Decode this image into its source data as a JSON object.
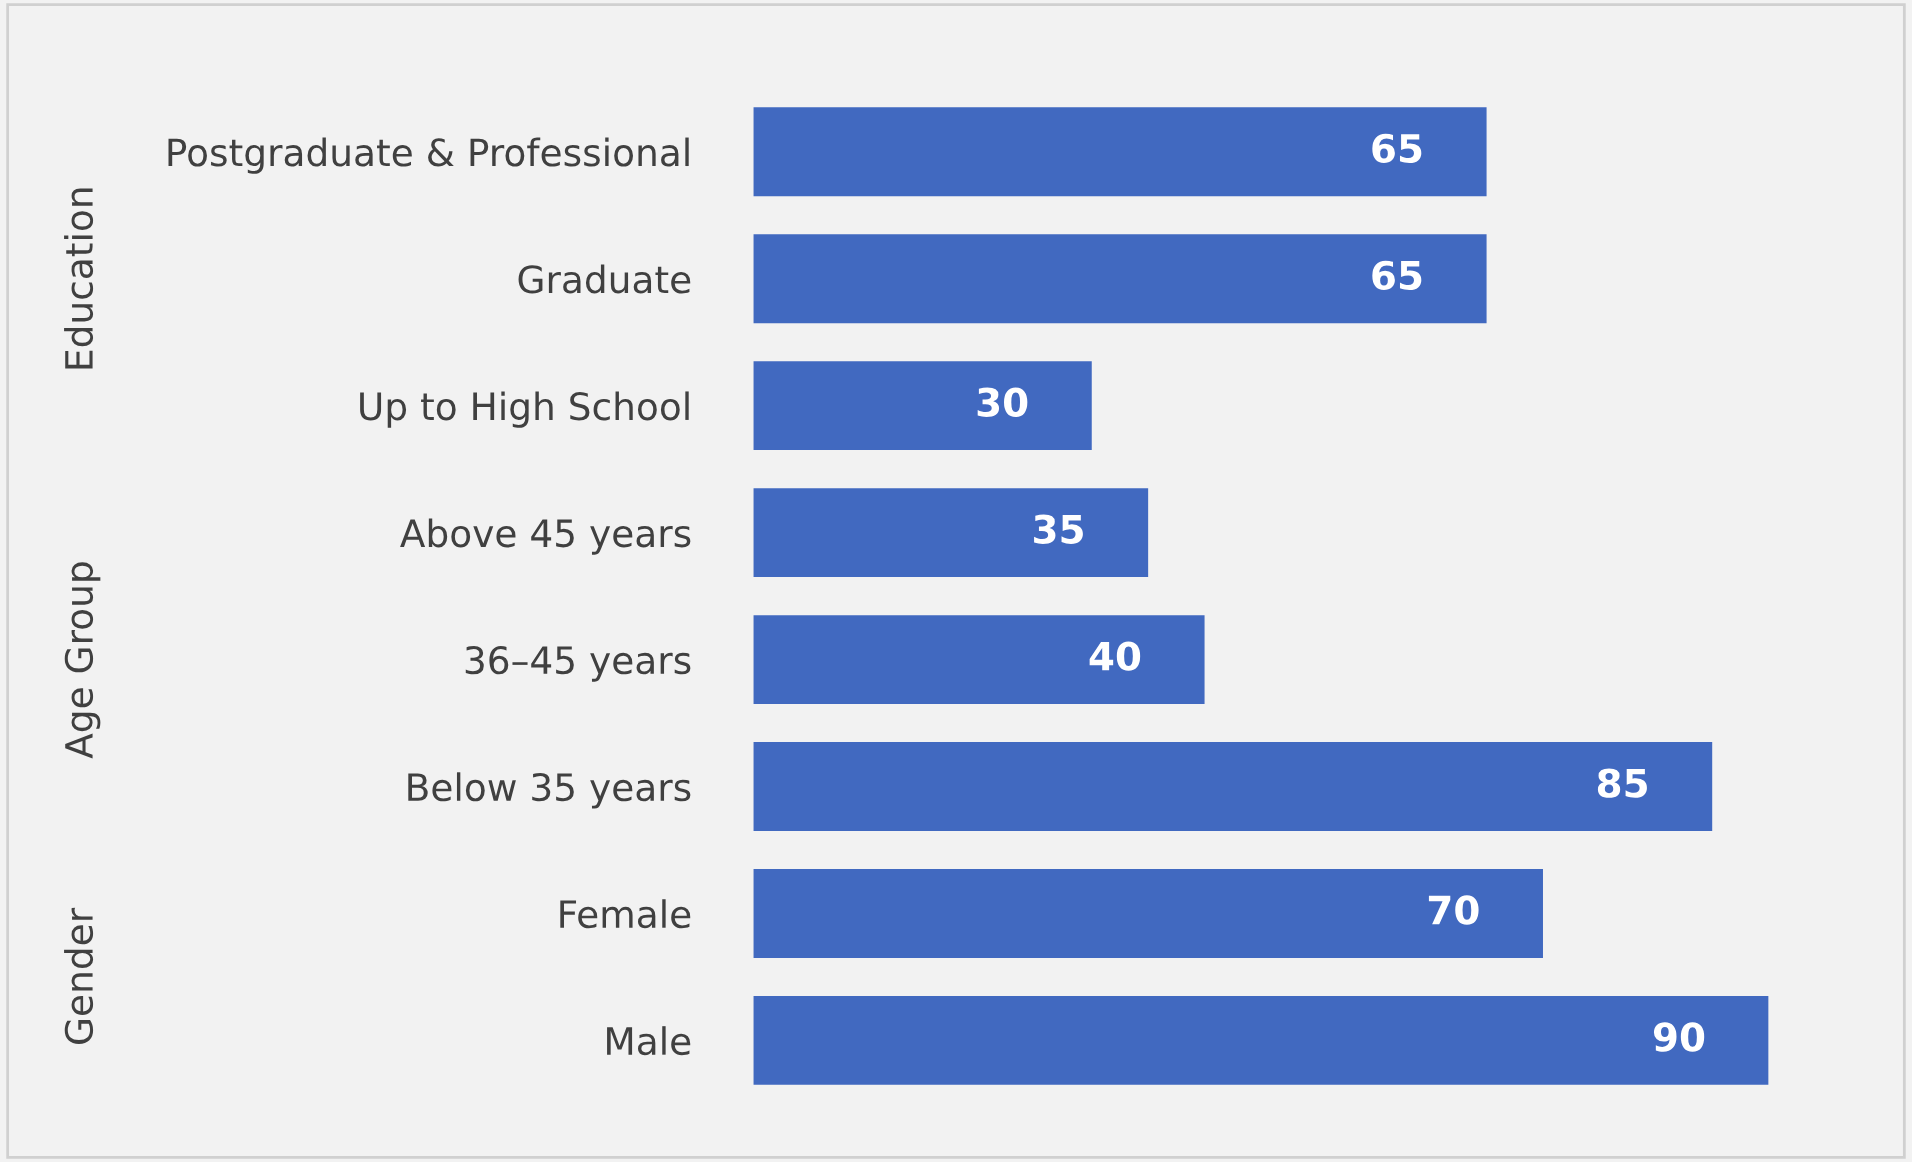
{
  "chart_data": {
    "type": "bar",
    "orientation": "horizontal",
    "categories": [
      "Postgraduate & Professional",
      "Graduate",
      "Up to High School",
      "Above 45 years",
      "36–45 years",
      "Below 35 years",
      "Female",
      "Male"
    ],
    "values": [
      65,
      65,
      30,
      35,
      40,
      85,
      70,
      90
    ],
    "color": "#4169c0",
    "data_labels": true,
    "grid": false,
    "legend": false,
    "tick_labels": "y",
    "annotations": [
      "Education",
      "Age Group",
      "Gender"
    ]
  }
}
